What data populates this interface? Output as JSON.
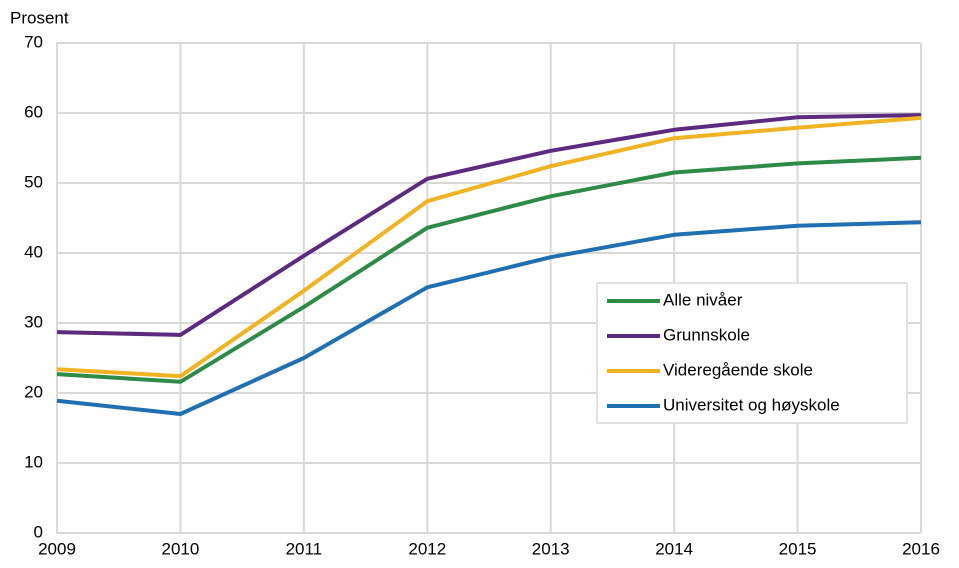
{
  "chart_data": {
    "type": "line",
    "y_label": "Prosent",
    "x": [
      2009,
      2010,
      2011,
      2012,
      2013,
      2014,
      2015,
      2016
    ],
    "xlim": [
      2009,
      2016
    ],
    "xticks": [
      2009,
      2010,
      2011,
      2012,
      2013,
      2014,
      2015,
      2016
    ],
    "ylim": [
      0,
      70
    ],
    "yticks": [
      0,
      10,
      20,
      30,
      40,
      50,
      60,
      70
    ],
    "grid": true,
    "legend": "right",
    "series": [
      {
        "name": "Alle nivåer",
        "color": "#2e8b47",
        "values": [
          22.7,
          21.6,
          32.3,
          43.6,
          48.1,
          51.5,
          52.8,
          53.6
        ]
      },
      {
        "name": "Grunnskole",
        "color": "#5c2a7e",
        "values": [
          28.7,
          28.3,
          39.6,
          50.6,
          54.6,
          57.6,
          59.4,
          59.7
        ]
      },
      {
        "name": "Videregående skole",
        "color": "#f0b323",
        "values": [
          23.4,
          22.4,
          34.6,
          47.4,
          52.4,
          56.4,
          57.9,
          59.3
        ]
      },
      {
        "name": "Universitet og høyskole",
        "color": "#1f6fb2",
        "values": [
          18.9,
          17.0,
          25.0,
          35.1,
          39.4,
          42.6,
          43.9,
          44.4
        ]
      }
    ]
  }
}
